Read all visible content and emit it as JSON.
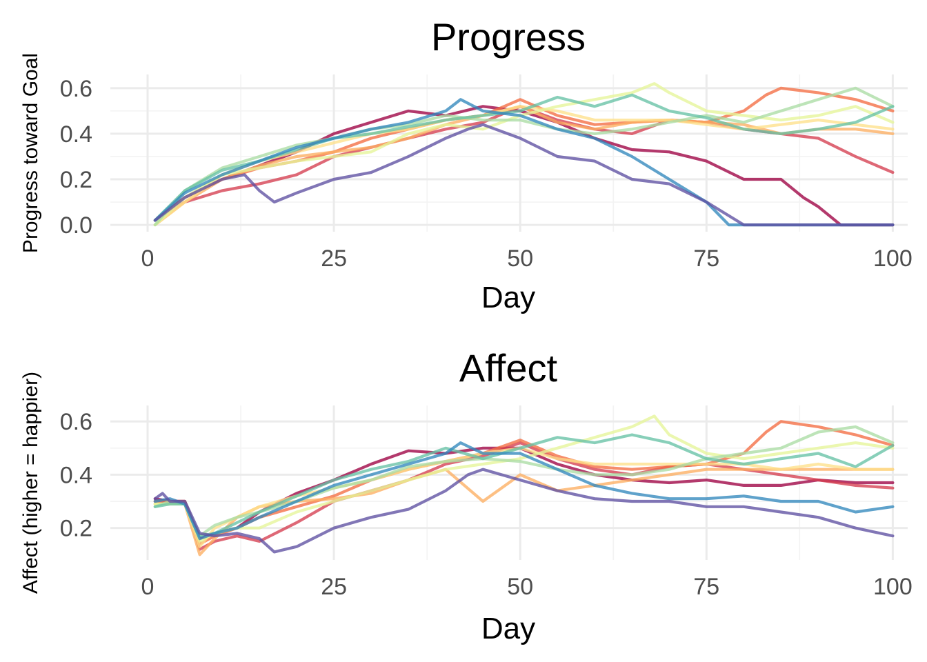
{
  "chart_data": [
    {
      "type": "line",
      "title": "Progress",
      "xlabel": "Day",
      "ylabel": "Progress toward Goal",
      "xlim": [
        -5,
        102
      ],
      "ylim": [
        -0.03,
        0.66
      ],
      "xticks": [
        0,
        25,
        50,
        75,
        100
      ],
      "xtick_labels": [
        "0",
        "25",
        "50",
        "75",
        "100"
      ],
      "yticks": [
        0.0,
        0.2,
        0.4,
        0.6
      ],
      "ytick_labels": [
        "0.0",
        "0.2",
        "0.4",
        "0.6"
      ],
      "grid": true,
      "legend": "none",
      "series": [
        {
          "color": "#9E0142",
          "x": [
            1,
            5,
            10,
            15,
            20,
            25,
            30,
            35,
            40,
            45,
            50,
            55,
            60,
            65,
            70,
            75,
            80,
            85,
            88,
            90,
            93,
            100
          ],
          "y": [
            0.02,
            0.12,
            0.2,
            0.26,
            0.32,
            0.4,
            0.45,
            0.5,
            0.48,
            0.52,
            0.5,
            0.45,
            0.38,
            0.33,
            0.32,
            0.28,
            0.2,
            0.2,
            0.12,
            0.08,
            0.0,
            0.0
          ]
        },
        {
          "color": "#D53E4F",
          "x": [
            1,
            5,
            10,
            15,
            20,
            25,
            30,
            35,
            40,
            45,
            50,
            55,
            60,
            65,
            70,
            75,
            80,
            85,
            90,
            95,
            100
          ],
          "y": [
            0.02,
            0.1,
            0.15,
            0.18,
            0.22,
            0.3,
            0.34,
            0.38,
            0.42,
            0.45,
            0.52,
            0.46,
            0.42,
            0.4,
            0.46,
            0.45,
            0.42,
            0.4,
            0.38,
            0.3,
            0.23
          ]
        },
        {
          "color": "#F46D43",
          "x": [
            1,
            5,
            10,
            15,
            20,
            25,
            30,
            35,
            40,
            45,
            50,
            55,
            60,
            65,
            70,
            75,
            80,
            83,
            85,
            90,
            95,
            100
          ],
          "y": [
            0.02,
            0.12,
            0.2,
            0.25,
            0.28,
            0.32,
            0.38,
            0.42,
            0.46,
            0.48,
            0.55,
            0.48,
            0.44,
            0.45,
            0.46,
            0.45,
            0.5,
            0.57,
            0.6,
            0.58,
            0.55,
            0.5
          ]
        },
        {
          "color": "#FDAE61",
          "x": [
            1,
            5,
            10,
            15,
            20,
            25,
            30,
            35,
            40,
            45,
            50,
            55,
            60,
            65,
            70,
            75,
            80,
            85,
            90,
            95,
            100
          ],
          "y": [
            0.0,
            0.1,
            0.2,
            0.26,
            0.3,
            0.32,
            0.34,
            0.38,
            0.44,
            0.48,
            0.52,
            0.45,
            0.42,
            0.45,
            0.46,
            0.45,
            0.44,
            0.4,
            0.42,
            0.42,
            0.4
          ]
        },
        {
          "color": "#FEE08B",
          "x": [
            1,
            5,
            10,
            15,
            20,
            25,
            30,
            35,
            40,
            45,
            50,
            55,
            60,
            65,
            70,
            75,
            80,
            85,
            90,
            95,
            100
          ],
          "y": [
            0.0,
            0.1,
            0.22,
            0.28,
            0.32,
            0.36,
            0.4,
            0.42,
            0.46,
            0.48,
            0.52,
            0.5,
            0.46,
            0.46,
            0.46,
            0.44,
            0.42,
            0.44,
            0.46,
            0.44,
            0.42
          ]
        },
        {
          "color": "#E6F598",
          "x": [
            1,
            5,
            10,
            15,
            20,
            25,
            30,
            35,
            40,
            45,
            50,
            55,
            60,
            65,
            68,
            70,
            75,
            80,
            85,
            90,
            95,
            100
          ],
          "y": [
            0.0,
            0.12,
            0.22,
            0.25,
            0.28,
            0.3,
            0.32,
            0.4,
            0.44,
            0.42,
            0.48,
            0.52,
            0.55,
            0.58,
            0.62,
            0.58,
            0.5,
            0.48,
            0.46,
            0.48,
            0.52,
            0.45
          ]
        },
        {
          "color": "#ABDDA4",
          "x": [
            1,
            5,
            10,
            15,
            20,
            25,
            30,
            35,
            40,
            45,
            50,
            55,
            60,
            65,
            70,
            75,
            80,
            85,
            90,
            95,
            100
          ],
          "y": [
            0.0,
            0.15,
            0.25,
            0.3,
            0.35,
            0.38,
            0.42,
            0.44,
            0.48,
            0.46,
            0.46,
            0.42,
            0.4,
            0.42,
            0.45,
            0.48,
            0.45,
            0.5,
            0.55,
            0.6,
            0.52
          ]
        },
        {
          "color": "#66C2A5",
          "x": [
            1,
            5,
            10,
            15,
            20,
            25,
            30,
            35,
            40,
            45,
            50,
            55,
            60,
            65,
            70,
            75,
            80,
            85,
            90,
            95,
            100
          ],
          "y": [
            0.02,
            0.15,
            0.24,
            0.28,
            0.33,
            0.38,
            0.4,
            0.43,
            0.46,
            0.48,
            0.5,
            0.56,
            0.52,
            0.57,
            0.5,
            0.47,
            0.42,
            0.4,
            0.42,
            0.45,
            0.52
          ]
        },
        {
          "color": "#3288BD",
          "x": [
            1,
            5,
            10,
            15,
            20,
            25,
            30,
            35,
            40,
            42,
            45,
            50,
            55,
            60,
            65,
            70,
            75,
            78,
            80,
            100
          ],
          "y": [
            0.02,
            0.14,
            0.22,
            0.28,
            0.34,
            0.38,
            0.42,
            0.45,
            0.5,
            0.55,
            0.5,
            0.48,
            0.42,
            0.38,
            0.3,
            0.2,
            0.1,
            0.0,
            0.0,
            0.0
          ]
        },
        {
          "color": "#5E4FA2",
          "x": [
            1,
            5,
            10,
            13,
            15,
            17,
            20,
            25,
            30,
            35,
            40,
            43,
            45,
            50,
            55,
            60,
            65,
            70,
            75,
            80,
            100
          ],
          "y": [
            0.02,
            0.12,
            0.2,
            0.22,
            0.15,
            0.1,
            0.14,
            0.2,
            0.23,
            0.3,
            0.38,
            0.42,
            0.44,
            0.38,
            0.3,
            0.28,
            0.2,
            0.18,
            0.1,
            0.0,
            0.0
          ]
        }
      ]
    },
    {
      "type": "line",
      "title": "Affect",
      "xlabel": "Day",
      "ylabel": "Affect (higher = happier)",
      "xlim": [
        -5,
        102
      ],
      "ylim": [
        0.08,
        0.66
      ],
      "xticks": [
        0,
        25,
        50,
        75,
        100
      ],
      "xtick_labels": [
        "0",
        "25",
        "50",
        "75",
        "100"
      ],
      "yticks": [
        0.2,
        0.4,
        0.6
      ],
      "ytick_labels": [
        "0.2",
        "0.4",
        "0.6"
      ],
      "grid": true,
      "legend": "none",
      "series": [
        {
          "color": "#9E0142",
          "x": [
            1,
            3,
            5,
            7,
            9,
            12,
            15,
            20,
            25,
            30,
            35,
            40,
            45,
            50,
            55,
            60,
            65,
            70,
            75,
            80,
            85,
            90,
            95,
            100
          ],
          "y": [
            0.31,
            0.3,
            0.3,
            0.16,
            0.18,
            0.2,
            0.26,
            0.33,
            0.38,
            0.44,
            0.49,
            0.48,
            0.5,
            0.5,
            0.44,
            0.4,
            0.38,
            0.37,
            0.38,
            0.36,
            0.36,
            0.38,
            0.37,
            0.37
          ]
        },
        {
          "color": "#D53E4F",
          "x": [
            1,
            3,
            5,
            7,
            9,
            12,
            15,
            20,
            25,
            30,
            35,
            40,
            45,
            50,
            55,
            60,
            65,
            70,
            75,
            80,
            85,
            90,
            95,
            100
          ],
          "y": [
            0.3,
            0.3,
            0.3,
            0.12,
            0.15,
            0.17,
            0.15,
            0.22,
            0.3,
            0.34,
            0.38,
            0.44,
            0.47,
            0.52,
            0.46,
            0.42,
            0.4,
            0.43,
            0.44,
            0.42,
            0.4,
            0.38,
            0.36,
            0.35
          ]
        },
        {
          "color": "#F46D43",
          "x": [
            1,
            3,
            5,
            7,
            9,
            12,
            15,
            20,
            25,
            30,
            35,
            40,
            45,
            50,
            55,
            60,
            65,
            70,
            75,
            80,
            83,
            85,
            90,
            95,
            100
          ],
          "y": [
            0.3,
            0.3,
            0.3,
            0.14,
            0.17,
            0.2,
            0.24,
            0.28,
            0.32,
            0.38,
            0.42,
            0.45,
            0.48,
            0.53,
            0.47,
            0.43,
            0.42,
            0.43,
            0.44,
            0.48,
            0.56,
            0.6,
            0.58,
            0.55,
            0.51
          ]
        },
        {
          "color": "#FDAE61",
          "x": [
            1,
            3,
            5,
            7,
            9,
            12,
            15,
            20,
            25,
            30,
            35,
            40,
            45,
            50,
            55,
            60,
            65,
            70,
            75,
            80,
            85,
            90,
            95,
            100
          ],
          "y": [
            0.29,
            0.29,
            0.29,
            0.1,
            0.16,
            0.24,
            0.28,
            0.3,
            0.31,
            0.33,
            0.38,
            0.42,
            0.3,
            0.4,
            0.34,
            0.36,
            0.38,
            0.4,
            0.42,
            0.42,
            0.42,
            0.42,
            0.42,
            0.42
          ]
        },
        {
          "color": "#FEE08B",
          "x": [
            1,
            3,
            5,
            7,
            9,
            12,
            15,
            20,
            25,
            30,
            35,
            40,
            45,
            50,
            55,
            60,
            65,
            70,
            75,
            80,
            85,
            90,
            95,
            100
          ],
          "y": [
            0.29,
            0.29,
            0.29,
            0.13,
            0.2,
            0.24,
            0.28,
            0.32,
            0.35,
            0.38,
            0.42,
            0.45,
            0.48,
            0.5,
            0.46,
            0.44,
            0.44,
            0.44,
            0.44,
            0.44,
            0.42,
            0.44,
            0.42,
            0.42
          ]
        },
        {
          "color": "#E6F598",
          "x": [
            1,
            3,
            5,
            7,
            9,
            12,
            15,
            20,
            25,
            30,
            35,
            40,
            45,
            50,
            55,
            60,
            65,
            68,
            70,
            75,
            80,
            85,
            90,
            95,
            100
          ],
          "y": [
            0.29,
            0.29,
            0.29,
            0.15,
            0.18,
            0.2,
            0.2,
            0.26,
            0.3,
            0.34,
            0.38,
            0.42,
            0.44,
            0.46,
            0.5,
            0.54,
            0.58,
            0.62,
            0.55,
            0.48,
            0.46,
            0.48,
            0.5,
            0.52,
            0.5
          ]
        },
        {
          "color": "#ABDDA4",
          "x": [
            1,
            3,
            5,
            7,
            9,
            12,
            15,
            20,
            25,
            30,
            35,
            40,
            45,
            50,
            55,
            60,
            65,
            70,
            75,
            80,
            85,
            90,
            95,
            100
          ],
          "y": [
            0.28,
            0.3,
            0.29,
            0.17,
            0.21,
            0.24,
            0.26,
            0.3,
            0.35,
            0.38,
            0.43,
            0.45,
            0.46,
            0.45,
            0.42,
            0.4,
            0.4,
            0.42,
            0.46,
            0.48,
            0.5,
            0.56,
            0.58,
            0.52
          ]
        },
        {
          "color": "#66C2A5",
          "x": [
            1,
            3,
            5,
            7,
            9,
            12,
            15,
            20,
            25,
            30,
            35,
            40,
            45,
            50,
            55,
            60,
            65,
            70,
            75,
            80,
            85,
            90,
            95,
            100
          ],
          "y": [
            0.28,
            0.29,
            0.29,
            0.17,
            0.18,
            0.22,
            0.26,
            0.32,
            0.38,
            0.42,
            0.45,
            0.5,
            0.46,
            0.5,
            0.54,
            0.52,
            0.55,
            0.52,
            0.46,
            0.44,
            0.46,
            0.48,
            0.43,
            0.51
          ]
        },
        {
          "color": "#3288BD",
          "x": [
            1,
            3,
            5,
            7,
            9,
            12,
            15,
            20,
            25,
            30,
            35,
            40,
            42,
            45,
            50,
            55,
            60,
            65,
            70,
            75,
            80,
            85,
            90,
            95,
            100
          ],
          "y": [
            0.3,
            0.31,
            0.29,
            0.16,
            0.18,
            0.2,
            0.24,
            0.3,
            0.36,
            0.4,
            0.44,
            0.48,
            0.52,
            0.48,
            0.48,
            0.42,
            0.36,
            0.33,
            0.31,
            0.31,
            0.32,
            0.3,
            0.3,
            0.26,
            0.28
          ]
        },
        {
          "color": "#5E4FA2",
          "x": [
            1,
            2,
            3,
            5,
            7,
            9,
            12,
            15,
            17,
            20,
            25,
            30,
            35,
            40,
            43,
            45,
            50,
            55,
            60,
            65,
            70,
            75,
            80,
            85,
            90,
            95,
            100
          ],
          "y": [
            0.31,
            0.33,
            0.3,
            0.3,
            0.18,
            0.17,
            0.18,
            0.16,
            0.11,
            0.13,
            0.2,
            0.24,
            0.27,
            0.34,
            0.4,
            0.42,
            0.38,
            0.34,
            0.31,
            0.3,
            0.3,
            0.28,
            0.28,
            0.26,
            0.24,
            0.2,
            0.17
          ]
        }
      ]
    }
  ]
}
